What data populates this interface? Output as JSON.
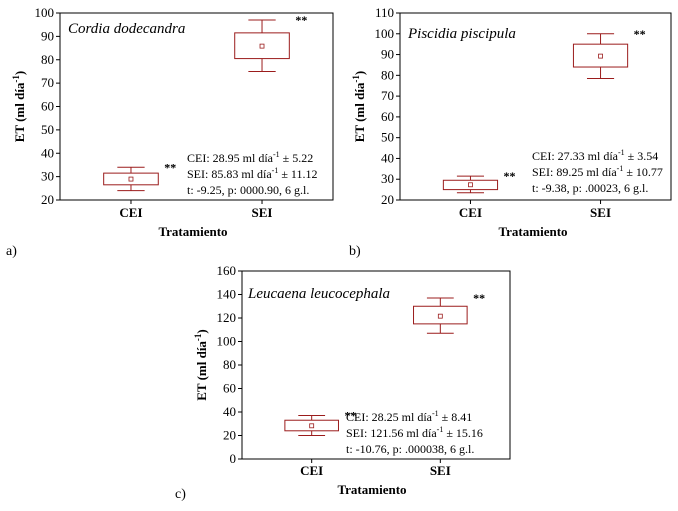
{
  "chart_data": [
    {
      "type": "box",
      "panel_label": "a)",
      "title": "Cordia dodecandra",
      "xlabel": "Tratamiento",
      "ylabel": "ET (ml día",
      "ylabel_sup": "-1",
      "ylabel_close": ")",
      "ylim": [
        20,
        100
      ],
      "yticks": [
        20,
        30,
        40,
        50,
        60,
        70,
        80,
        90,
        100
      ],
      "categories": [
        "CEI",
        "SEI"
      ],
      "boxes": [
        {
          "category": "CEI",
          "mean": 28.95,
          "q1": 26.5,
          "q3": 31.5,
          "whisker_low": 24,
          "whisker_high": 34,
          "marker": "**"
        },
        {
          "category": "SEI",
          "mean": 85.83,
          "q1": 80.5,
          "q3": 91.5,
          "whisker_low": 75,
          "whisker_high": 97,
          "marker": "**"
        }
      ],
      "stats": [
        {
          "pre": "CEI: 28.95 ml día",
          "sup": "-1",
          "post": " ± 5.22"
        },
        {
          "pre": "SEI: 85.83 ml día",
          "sup": "-1",
          "post": " ± 11.12"
        },
        {
          "pre": "t: -9.25, p: 0000.90, 6 g.l.",
          "sup": "",
          "post": ""
        }
      ],
      "color": "#9b1c1c"
    },
    {
      "type": "box",
      "panel_label": "b)",
      "title": "Piscidia piscipula",
      "xlabel": "Tratamiento",
      "ylabel": "ET (ml día",
      "ylabel_sup": "-1",
      "ylabel_close": ")",
      "ylim": [
        20,
        110
      ],
      "yticks": [
        20,
        30,
        40,
        50,
        60,
        70,
        80,
        90,
        100,
        110
      ],
      "categories": [
        "CEI",
        "SEI"
      ],
      "boxes": [
        {
          "category": "CEI",
          "mean": 27.33,
          "q1": 25,
          "q3": 29.5,
          "whisker_low": 23.5,
          "whisker_high": 31.5,
          "marker": "**"
        },
        {
          "category": "SEI",
          "mean": 89.25,
          "q1": 84,
          "q3": 95,
          "whisker_low": 78.5,
          "whisker_high": 100,
          "marker": "**"
        }
      ],
      "stats": [
        {
          "pre": "CEI: 27.33 ml día",
          "sup": "-1",
          "post": " ± 3.54"
        },
        {
          "pre": "SEI: 89.25 ml día",
          "sup": "-1",
          "post": " ± 10.77"
        },
        {
          "pre": "t: -9.38, p: .00023, 6 g.l.",
          "sup": "",
          "post": ""
        }
      ],
      "color": "#9b1c1c"
    },
    {
      "type": "box",
      "panel_label": "c)",
      "title": "Leucaena leucocephala",
      "xlabel": "Tratamiento",
      "ylabel": "ET (ml día",
      "ylabel_sup": "-1",
      "ylabel_close": ")",
      "ylim": [
        0,
        160
      ],
      "yticks": [
        0,
        20,
        40,
        60,
        80,
        100,
        120,
        140,
        160
      ],
      "categories": [
        "CEI",
        "SEI"
      ],
      "boxes": [
        {
          "category": "CEI",
          "mean": 28.25,
          "q1": 24,
          "q3": 33,
          "whisker_low": 20,
          "whisker_high": 37,
          "marker": "**"
        },
        {
          "category": "SEI",
          "mean": 121.56,
          "q1": 115,
          "q3": 130,
          "whisker_low": 107,
          "whisker_high": 137,
          "marker": "**"
        }
      ],
      "stats": [
        {
          "pre": "CEI: 28.25 ml día",
          "sup": "-1",
          "post": " ± 8.41"
        },
        {
          "pre": "SEI: 121.56 ml día",
          "sup": "-1",
          "post": " ± 15.16"
        },
        {
          "pre": "t: -10.76, p: .000038, 6 g.l.",
          "sup": "",
          "post": ""
        }
      ],
      "color": "#9b1c1c"
    }
  ]
}
